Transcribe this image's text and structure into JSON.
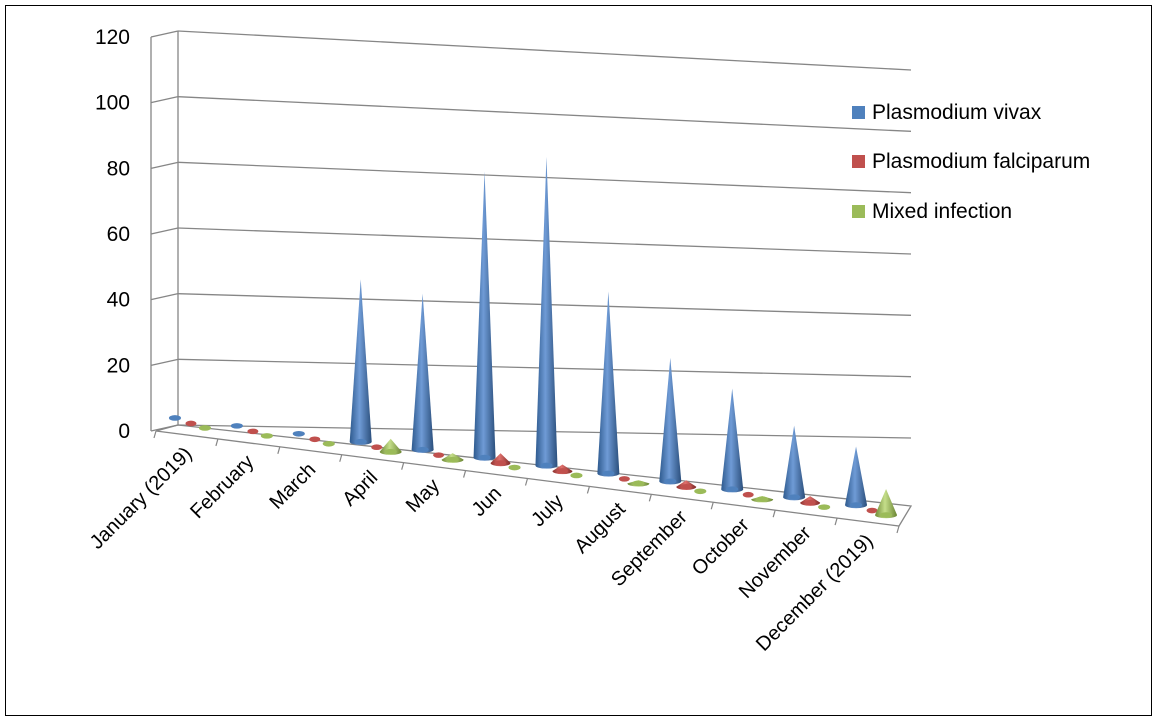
{
  "chart_data": {
    "type": "bar",
    "subtype": "3d-cone",
    "title": "",
    "xlabel": "",
    "ylabel": "",
    "ylim": [
      0,
      120
    ],
    "yticks": [
      "0",
      "20",
      "40",
      "60",
      "80",
      "100",
      "120"
    ],
    "grid": true,
    "legend_position": "right",
    "categories": [
      "January (2019)",
      "February",
      "March",
      "April",
      "May",
      "Jun",
      "July",
      "August",
      "September",
      "October",
      "November",
      "December (2019)"
    ],
    "series": [
      {
        "name": "Plasmodium vivax",
        "color": "#4F81BD",
        "values": [
          0,
          0,
          0,
          50,
          48,
          88,
          95,
          56,
          38,
          31,
          22,
          18
        ]
      },
      {
        "name": "Plasmodium  falciparum",
        "color": "#C0504D",
        "values": [
          0,
          0,
          0,
          0,
          0,
          3,
          2,
          0,
          2,
          0,
          2,
          0
        ]
      },
      {
        "name": "Mixed infection",
        "color": "#9BBB59",
        "values": [
          0,
          0,
          0,
          4,
          2,
          0,
          0,
          1,
          0,
          1,
          0,
          8
        ]
      }
    ]
  }
}
